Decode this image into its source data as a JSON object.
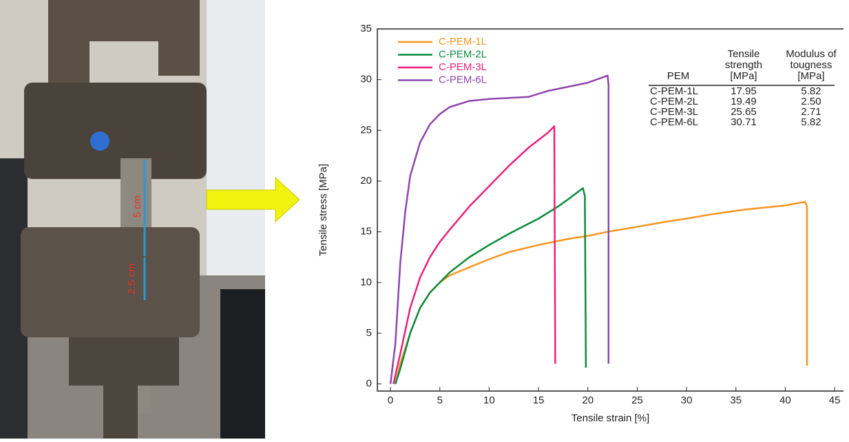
{
  "photo": {
    "labels": [
      "5 cm",
      "2.5 cm"
    ]
  },
  "chart_data": {
    "type": "line",
    "x_label": "Tensile strain [%]",
    "y_label": "Tensile stress [MPa]",
    "xlim": [
      -1.33,
      45.9
    ],
    "ylim": [
      -0.7,
      35
    ],
    "xticks": [
      0,
      5,
      10,
      15,
      20,
      25,
      30,
      35,
      40,
      45
    ],
    "yticks": [
      0,
      5,
      10,
      15,
      20,
      25,
      30,
      35
    ],
    "legend": "upper left",
    "series": [
      {
        "name": "C-PEM-1L",
        "color": "#f7941d",
        "x": [
          0.5,
          1,
          2,
          3,
          4,
          5,
          6,
          8,
          10,
          12,
          15,
          18,
          20,
          22,
          25,
          28,
          30,
          33,
          36,
          40,
          42,
          42.2,
          42.2
        ],
        "values": [
          0,
          2,
          5,
          7.5,
          9,
          10,
          10.7,
          11.5,
          12.3,
          13,
          13.7,
          14.3,
          14.6,
          15,
          15.5,
          16,
          16.3,
          16.8,
          17.2,
          17.6,
          17.95,
          17.5,
          1.8
        ]
      },
      {
        "name": "C-PEM-2L",
        "color": "#0a8a3c",
        "x": [
          0.5,
          1,
          2,
          3,
          4,
          5,
          6,
          8,
          10,
          12,
          15,
          17,
          18,
          19.5,
          19.7,
          19.8
        ],
        "values": [
          0,
          1.5,
          5,
          7.5,
          9,
          10,
          11,
          12.5,
          13.7,
          14.8,
          16.3,
          17.5,
          18.2,
          19.3,
          18.5,
          1.6
        ]
      },
      {
        "name": "C-PEM-3L",
        "color": "#ec1e79",
        "x": [
          0.3,
          1,
          2,
          3,
          4,
          5,
          6,
          8,
          10,
          12,
          14,
          16,
          16.6,
          16.7
        ],
        "values": [
          0,
          3,
          7.5,
          10.5,
          12.5,
          14,
          15.2,
          17.5,
          19.5,
          21.5,
          23.3,
          24.8,
          25.4,
          2
        ]
      },
      {
        "name": "C-PEM-6L",
        "color": "#8e44ad",
        "x": [
          0,
          0.5,
          1,
          1.5,
          2,
          3,
          4,
          5,
          6,
          8,
          10,
          14,
          16,
          18,
          20,
          22,
          22.1,
          22.1
        ],
        "values": [
          0,
          4,
          12,
          17,
          20.5,
          23.8,
          25.6,
          26.6,
          27.3,
          27.9,
          28.1,
          28.3,
          28.9,
          29.3,
          29.7,
          30.4,
          29.5,
          2
        ]
      }
    ],
    "table": {
      "header": [
        [
          "PEM"
        ],
        [
          "Tensile",
          "strength",
          "[MPa]"
        ],
        [
          "Modulus of",
          "tougness",
          "[MPa]"
        ]
      ],
      "rows": [
        [
          "C-PEM-1L",
          "17.95",
          "5.82"
        ],
        [
          "C-PEM-2L",
          "19.49",
          "2.50"
        ],
        [
          "C-PEM-3L",
          "25.65",
          "2.71"
        ],
        [
          "C-PEM-6L",
          "30.71",
          "5.82"
        ]
      ]
    }
  }
}
